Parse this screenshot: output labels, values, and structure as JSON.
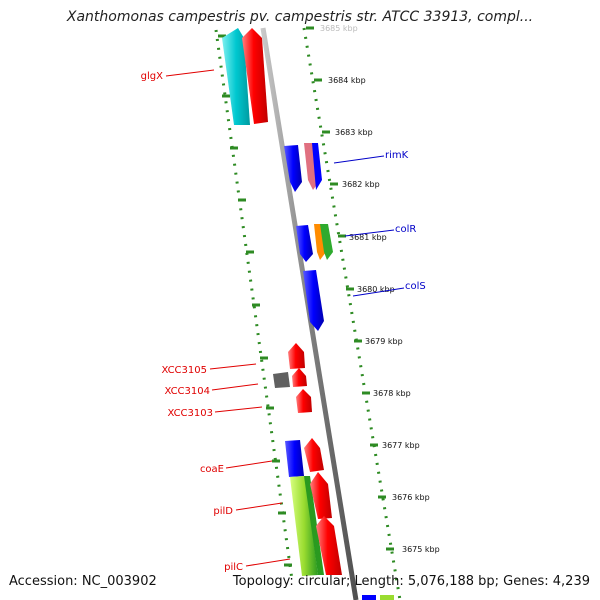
{
  "title": "Xanthomonas campestris pv. campestris str. ATCC 33913, compl...",
  "footer": {
    "accession": "Accession: NC_003902",
    "topology": "Topology: circular; Length: 5,076,188 bp; Genes: 4,239"
  },
  "colors": {
    "ruler": "#2e8b23",
    "backbone": "#808080",
    "red_label": "#e00000",
    "blue_label": "#0000c8"
  },
  "ruler_labels": [
    "3685 kbp",
    "3684 kbp",
    "3683 kbp",
    "3682 kbp",
    "3681 kbp",
    "3680 kbp",
    "3679 kbp",
    "3678 kbp",
    "3677 kbp",
    "3676 kbp",
    "3675 kbp"
  ],
  "gene_labels_left": [
    "glgX",
    "XCC3105",
    "XCC3104",
    "XCC3103",
    "coaE",
    "pilD",
    "pilC"
  ],
  "gene_labels_right": [
    "rimK",
    "colR",
    "colS"
  ],
  "features": [
    {
      "name": "glgX",
      "color": "#00c0c8",
      "strand": "forward"
    },
    {
      "name": "glgX-partner",
      "color": "#ff0000",
      "strand": "forward"
    },
    {
      "name": "rimK-blue",
      "color": "#0000ff",
      "strand": "reverse"
    },
    {
      "name": "rimK",
      "color": "#e07080",
      "strand": "reverse"
    },
    {
      "name": "colR-blue",
      "color": "#0000ff",
      "strand": "reverse"
    },
    {
      "name": "colR-orange",
      "color": "#ff8c00",
      "strand": "reverse"
    },
    {
      "name": "colR",
      "color": "#2eaa2e",
      "strand": "reverse"
    },
    {
      "name": "colS",
      "color": "#0000ff",
      "strand": "reverse"
    },
    {
      "name": "XCC3105",
      "color": "#ff0000",
      "strand": "forward"
    },
    {
      "name": "XCC3104",
      "color": "#ff0000",
      "strand": "forward"
    },
    {
      "name": "XCC3104-grey",
      "color": "#606060",
      "strand": "none"
    },
    {
      "name": "XCC3103",
      "color": "#ff0000",
      "strand": "forward"
    },
    {
      "name": "coaE-blue",
      "color": "#0000ff",
      "strand": "none"
    },
    {
      "name": "coaE",
      "color": "#ff0000",
      "strand": "forward"
    },
    {
      "name": "pilD-green",
      "color": "#9adc30",
      "strand": "none"
    },
    {
      "name": "pilD",
      "color": "#ff0000",
      "strand": "forward"
    }
  ]
}
